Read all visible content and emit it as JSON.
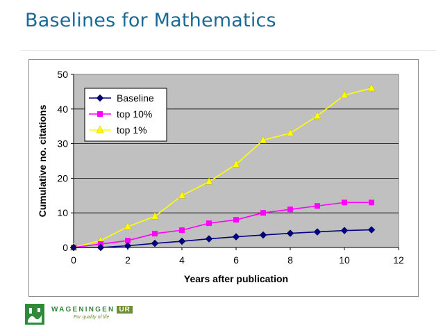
{
  "slide": {
    "title": "Baselines for Mathematics"
  },
  "logo": {
    "name": "WAGENINGEN",
    "suffix": "UR",
    "tagline": "For quality of life",
    "color_green": "#2f8a3a",
    "color_olive": "#6d8f2e"
  },
  "chart_data": {
    "type": "line",
    "title": "",
    "xlabel": "Years after publication",
    "ylabel": "Cumulative no. citations",
    "xlim": [
      0,
      12
    ],
    "ylim": [
      0,
      50
    ],
    "xticks": [
      0,
      2,
      4,
      6,
      8,
      10,
      12
    ],
    "yticks": [
      0,
      10,
      20,
      30,
      40,
      50
    ],
    "grid": "horizontal",
    "plot_background": "#c0c0c0",
    "legend_position": "top-left",
    "series": [
      {
        "name": "Baseline",
        "color": "#000080",
        "marker": "diamond",
        "x": [
          0,
          1,
          2,
          3,
          4,
          5,
          6,
          7,
          8,
          9,
          10,
          11
        ],
        "y": [
          0,
          0,
          0.5,
          1.2,
          1.8,
          2.5,
          3.1,
          3.6,
          4.1,
          4.5,
          4.9,
          5.1
        ]
      },
      {
        "name": "top 10%",
        "color": "#ff00ff",
        "marker": "square",
        "x": [
          0,
          1,
          2,
          3,
          4,
          5,
          6,
          7,
          8,
          9,
          10,
          11
        ],
        "y": [
          0,
          1,
          2,
          4,
          5,
          7,
          8,
          10,
          11,
          12,
          13,
          13
        ]
      },
      {
        "name": "top 1%",
        "color": "#ffff00",
        "marker": "triangle",
        "x": [
          0,
          1,
          2,
          3,
          4,
          5,
          6,
          7,
          8,
          9,
          10,
          11
        ],
        "y": [
          0,
          2,
          6,
          9,
          15,
          19,
          24,
          31,
          33,
          38,
          44,
          46
        ]
      }
    ]
  }
}
